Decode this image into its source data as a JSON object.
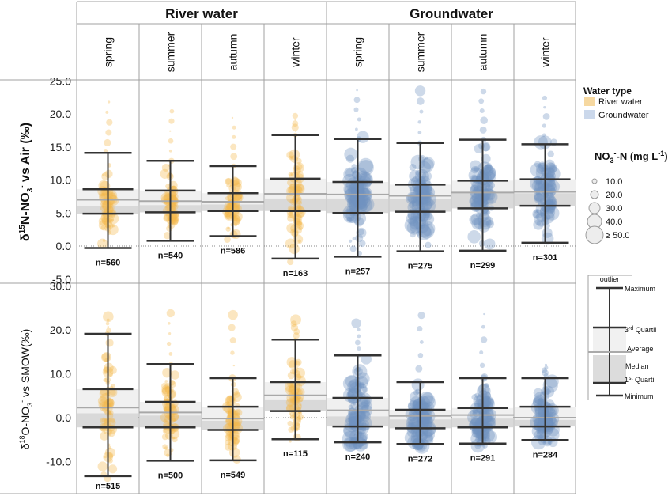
{
  "colors": {
    "river": "#F3B84A",
    "river_fill": "#F6D8A0",
    "ground": "#6F93C1",
    "ground_fill": "#B9CBE3",
    "box": "#D4D4D4",
    "box_light": "#EFEFEF",
    "grid": "#A0A0A0",
    "whisker": "#333333"
  },
  "groups": [
    "River water",
    "Groundwater"
  ],
  "seasons": [
    "spring",
    "summer",
    "autumn",
    "winter"
  ],
  "legend": {
    "title": "Water type",
    "items": [
      "River water",
      "Groundwater"
    ],
    "size_title_main": "NO",
    "size_title_sub": "3",
    "size_title_sup": "-",
    "size_title_rest": "-N (mg L",
    "size_title_exp": "-1",
    "size_title_close": ")",
    "sizes": [
      "10.0",
      "20.0",
      "30.0",
      "40.0",
      "≥ 50.0"
    ]
  },
  "key": {
    "outlier": "outlier",
    "maximum": "Maximum",
    "q3": "3",
    "q3_sup": "rd",
    "q3_rest": " Quartil",
    "average": "Average",
    "median": "Median",
    "q1": "1",
    "q1_sup": "st",
    "q1_rest": " Quartil",
    "minimum": "Minimum"
  },
  "chart_data": [
    {
      "type": "box",
      "ylabel_parts": [
        "δ",
        "15",
        "N-NO",
        "3",
        "-",
        " vs Air (‰)"
      ],
      "ylim": [
        -5.0,
        25.0
      ],
      "yticks": [
        "-5.0",
        "0.0",
        "5.0",
        "10.0",
        "15.0",
        "20.0",
        "25.0"
      ],
      "series": [
        {
          "group": "River water",
          "season": "spring",
          "n": "n=560",
          "min": -0.3,
          "q1": 4.9,
          "median": 6.0,
          "mean": 7.0,
          "q3": 8.6,
          "max": 14.1,
          "outlier_max": 21.8
        },
        {
          "group": "River water",
          "season": "summer",
          "n": "n=540",
          "min": 0.8,
          "q1": 5.1,
          "median": 6.2,
          "mean": 6.8,
          "q3": 8.4,
          "max": 12.9,
          "outlier_max": 20.4
        },
        {
          "group": "River water",
          "season": "autumn",
          "n": "n=586",
          "min": 1.5,
          "q1": 5.3,
          "median": 6.3,
          "mean": 6.7,
          "q3": 8.0,
          "max": 12.1,
          "outlier_max": 19.4
        },
        {
          "group": "River water",
          "season": "winter",
          "n": "n=163",
          "min": -1.9,
          "q1": 5.3,
          "median": 7.2,
          "mean": 7.9,
          "q3": 10.2,
          "max": 16.8,
          "outlier_max": 19.7
        },
        {
          "group": "Groundwater",
          "season": "spring",
          "n": "n=257",
          "min": -1.6,
          "q1": 5.0,
          "median": 7.2,
          "mean": 7.8,
          "q3": 9.7,
          "max": 16.2,
          "outlier_max": 23.6
        },
        {
          "group": "Groundwater",
          "season": "summer",
          "n": "n=275",
          "min": -0.8,
          "q1": 5.2,
          "median": 7.1,
          "mean": 7.6,
          "q3": 9.3,
          "max": 15.6,
          "outlier_max": 23.5
        },
        {
          "group": "Groundwater",
          "season": "autumn",
          "n": "n=299",
          "min": -0.7,
          "q1": 5.7,
          "median": 8.0,
          "mean": 8.1,
          "q3": 9.9,
          "max": 16.1,
          "outlier_max": 23.4
        },
        {
          "group": "Groundwater",
          "season": "winter",
          "n": "n=301",
          "min": 0.5,
          "q1": 6.1,
          "median": 8.0,
          "mean": 8.2,
          "q3": 10.1,
          "max": 15.4,
          "outlier_max": 22.4
        }
      ]
    },
    {
      "type": "box",
      "ylabel_parts": [
        "δ",
        "18",
        "O-NO",
        "3",
        "-",
        " vs SMOW(‰)"
      ],
      "ylim": [
        -15.0,
        30.0
      ],
      "yticks": [
        "-10.0",
        "0.0",
        "10.0",
        "20.0",
        "30.0"
      ],
      "series": [
        {
          "group": "River water",
          "season": "spring",
          "n": "n=515",
          "min": -13.3,
          "q1": -2.2,
          "median": 1.0,
          "mean": 2.3,
          "q3": 6.5,
          "max": 19.1,
          "outlier_max": 23.0
        },
        {
          "group": "River water",
          "season": "summer",
          "n": "n=500",
          "min": -9.8,
          "q1": -2.2,
          "median": 0.5,
          "mean": 1.2,
          "q3": 3.6,
          "max": 12.2,
          "outlier_max": 23.8
        },
        {
          "group": "River water",
          "season": "autumn",
          "n": "n=549",
          "min": -9.7,
          "q1": -2.8,
          "median": -0.7,
          "mean": -0.2,
          "q3": 2.5,
          "max": 9.0,
          "outlier_max": 23.4
        },
        {
          "group": "River water",
          "season": "winter",
          "n": "n=115",
          "min": -4.9,
          "q1": 1.5,
          "median": 4.0,
          "mean": 5.1,
          "q3": 8.1,
          "max": 17.8,
          "outlier_max": 22.3
        },
        {
          "group": "Groundwater",
          "season": "spring",
          "n": "n=240",
          "min": -5.6,
          "q1": -2.0,
          "median": 0.3,
          "mean": 1.7,
          "q3": 4.5,
          "max": 14.2,
          "outlier_max": 21.5
        },
        {
          "group": "Groundwater",
          "season": "summer",
          "n": "n=272",
          "min": -6.0,
          "q1": -2.4,
          "median": -0.4,
          "mean": 0.4,
          "q3": 1.8,
          "max": 8.1,
          "outlier_max": 23.3
        },
        {
          "group": "Groundwater",
          "season": "autumn",
          "n": "n=291",
          "min": -5.9,
          "q1": -2.2,
          "median": -0.2,
          "mean": 0.6,
          "q3": 2.2,
          "max": 9.0,
          "outlier_max": 23.6
        },
        {
          "group": "Groundwater",
          "season": "winter",
          "n": "n=284",
          "min": -5.1,
          "q1": -2.0,
          "median": -0.5,
          "mean": 0.0,
          "q3": 2.5,
          "max": 9.0,
          "outlier_max": 12.0
        }
      ]
    }
  ]
}
